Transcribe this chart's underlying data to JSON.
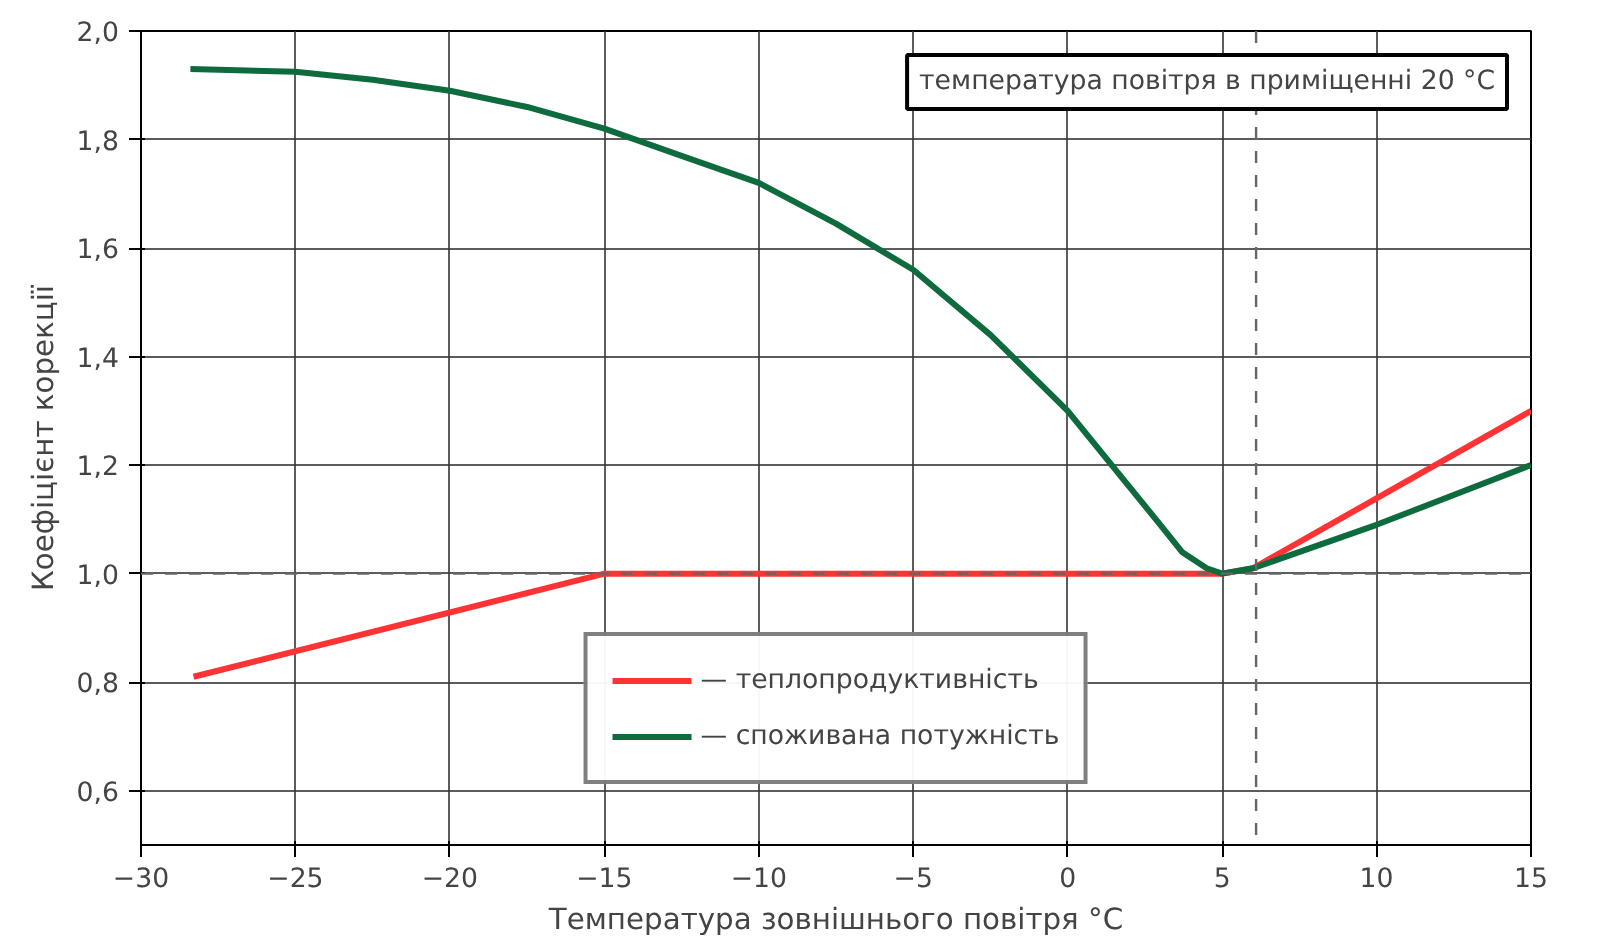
{
  "chart_data": {
    "type": "line",
    "xlabel": "Температура зовнішнього повітря °C",
    "ylabel": "Коефіцієнт корекції",
    "xlim": [
      -30,
      15
    ],
    "ylim": [
      0.5,
      2.0
    ],
    "xticks": [
      {
        "value": -30,
        "label": "−30"
      },
      {
        "value": -25,
        "label": "−25"
      },
      {
        "value": -20,
        "label": "−20"
      },
      {
        "value": -15,
        "label": "−15"
      },
      {
        "value": -10,
        "label": "−10"
      },
      {
        "value": -5,
        "label": "−5"
      },
      0,
      5,
      10,
      15
    ],
    "yticks": [
      {
        "value": 0.6,
        "label": "0,6"
      },
      {
        "value": 0.8,
        "label": "0,8"
      },
      {
        "value": 1.0,
        "label": "1,0"
      },
      {
        "value": 1.2,
        "label": "1,2"
      },
      {
        "value": 1.4,
        "label": "1,4"
      },
      {
        "value": 1.6,
        "label": "1,6"
      },
      {
        "value": 1.8,
        "label": "1,8"
      },
      {
        "value": 2.0,
        "label": "2,0"
      }
    ],
    "grid": true,
    "legend": "bottom",
    "marker": "none",
    "line_style": "solid",
    "series": [
      {
        "name": "— теплопродуктивність",
        "color": "#ff3333",
        "x": [
          -28.3,
          -15,
          5,
          6,
          15
        ],
        "values": [
          0.81,
          1.0,
          1.0,
          1.01,
          1.3
        ]
      },
      {
        "name": "— споживана потужність",
        "color": "#0e6b3e",
        "x": [
          -28.4,
          -25,
          -22.5,
          -20,
          -17.5,
          -15,
          -12.5,
          -10,
          -7.5,
          -5,
          -2.5,
          0,
          1,
          2,
          3,
          3.7,
          4.5,
          5,
          6,
          10,
          15
        ],
        "values": [
          1.93,
          1.925,
          1.91,
          1.89,
          1.86,
          1.82,
          1.77,
          1.72,
          1.645,
          1.56,
          1.44,
          1.3,
          1.23,
          1.16,
          1.09,
          1.04,
          1.01,
          1.0,
          1.01,
          1.09,
          1.2
        ]
      }
    ],
    "ref_lines": [
      {
        "axis": "y",
        "value": 1.0,
        "label": null,
        "color": "#666666",
        "line_style": "dashed"
      },
      {
        "axis": "x",
        "value": 6.1,
        "label": null,
        "color": "#666666",
        "line_style": "dashed"
      }
    ],
    "annotations": [
      "температура повітря в приміщенні 20 °C"
    ]
  }
}
